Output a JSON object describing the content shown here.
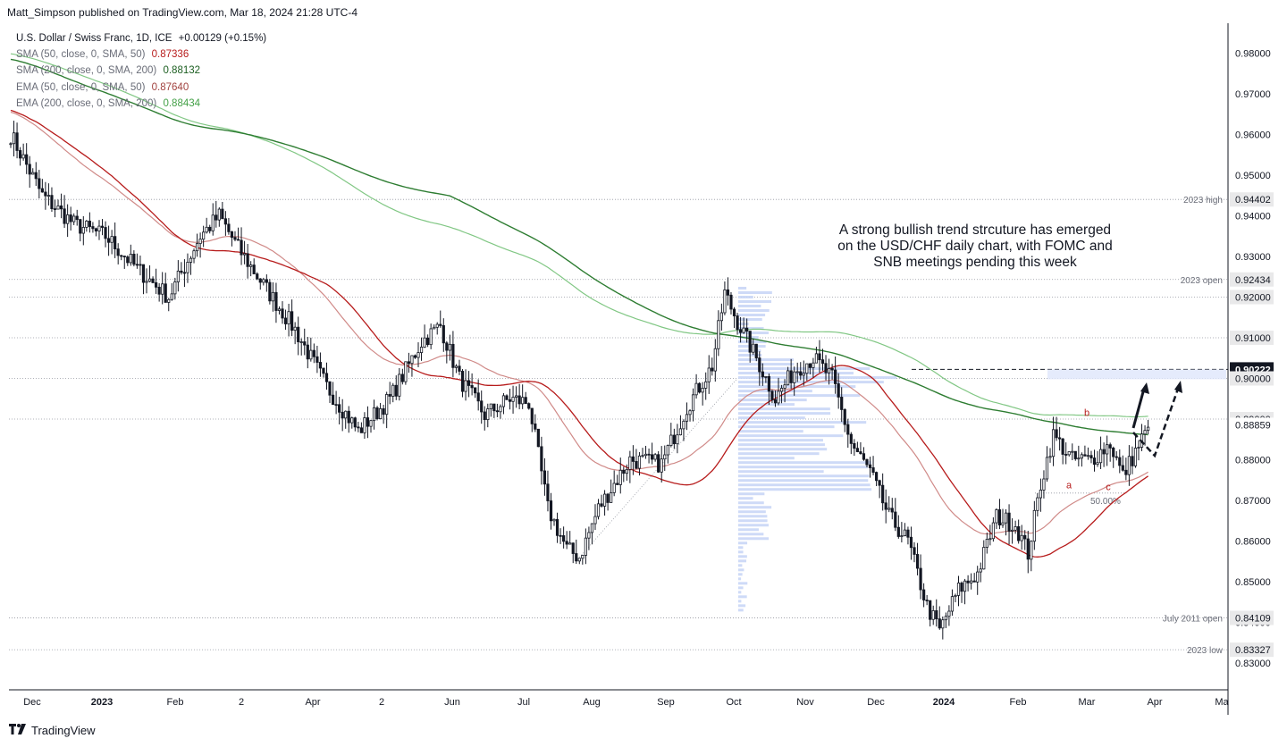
{
  "header": {
    "published_line": "Matt_Simpson published on TradingView.com, Mar 18, 2024 21:28 UTC-4"
  },
  "legend": {
    "symbol": "U.S. Dollar / Swiss Franc, 1D, ICE",
    "change": "+0.00129 (+0.15%)",
    "indicators": [
      {
        "label": "SMA (50, close, 0, SMA, 50)",
        "value": "0.87336",
        "color": "#b71c1c"
      },
      {
        "label": "SMA (200, close, 0, SMA, 200)",
        "value": "0.88132",
        "color": "#1b5e20"
      },
      {
        "label": "EMA (50, close, 0, SMA, 50)",
        "value": "0.87640",
        "color": "#a1423f"
      },
      {
        "label": "EMA (200, close, 0, SMA, 200)",
        "value": "0.88434",
        "color": "#43a047"
      }
    ]
  },
  "annotation": {
    "text_lines": [
      "A strong bullish trend strcuture has emerged",
      "on the USD/CHF daily chart, with FOMC and",
      "SNB meetings pending this week"
    ]
  },
  "footer": {
    "brand": "TradingView"
  },
  "chart_data": {
    "type": "candlestick",
    "title": "U.S. Dollar / Swiss Franc, 1D, ICE",
    "ylim": [
      0.8259,
      0.9905
    ],
    "y_ticks": [
      "0.98000",
      "0.97000",
      "0.96000",
      "0.95000",
      "0.94000",
      "0.93000",
      "0.92000",
      "0.91000",
      "0.90000",
      "0.89000",
      "0.88000",
      "0.87000",
      "0.86000",
      "0.85000",
      "0.84000",
      "0.83000"
    ],
    "x_ticks": [
      "Dec",
      "2023",
      "Feb",
      "2",
      "Apr",
      "2",
      "Jun",
      "Jul",
      "Aug",
      "Sep",
      "Oct",
      "Nov",
      "Dec",
      "2024",
      "Feb",
      "Mar",
      "Apr",
      "Ma"
    ],
    "price_levels": [
      {
        "label": "2023 high",
        "value": 0.94402,
        "tag": "0.94402"
      },
      {
        "label": "2023 open",
        "value": 0.92434,
        "tag": "0.92434"
      },
      {
        "label": "",
        "value": 0.92,
        "tag": "0.92000"
      },
      {
        "label": "",
        "value": 0.91,
        "tag": "0.91000"
      },
      {
        "label": "",
        "value": 0.90222,
        "tag": "0.90222"
      },
      {
        "label": "",
        "value": 0.9,
        "tag": "0.90000"
      },
      {
        "label": "",
        "value": 0.89,
        "tag": "0.89000"
      },
      {
        "label": "",
        "value": 0.88859,
        "tag": "0.88859"
      },
      {
        "label": "July 2011 open",
        "value": 0.84109,
        "tag": "0.84109"
      },
      {
        "label": "2023 low",
        "value": 0.83327,
        "tag": "0.83327"
      }
    ],
    "current_price": 0.88859,
    "wave_labels": [
      "a",
      "b",
      "c"
    ],
    "fib_label": "50.00%",
    "price_path_anchor_closes": [
      [
        0,
        0.96
      ],
      [
        10,
        0.945
      ],
      [
        20,
        0.938
      ],
      [
        30,
        0.935
      ],
      [
        40,
        0.927
      ],
      [
        50,
        0.92
      ],
      [
        60,
        0.935
      ],
      [
        66,
        0.94
      ],
      [
        72,
        0.932
      ],
      [
        80,
        0.923
      ],
      [
        90,
        0.912
      ],
      [
        100,
        0.898
      ],
      [
        110,
        0.887
      ],
      [
        120,
        0.895
      ],
      [
        130,
        0.909
      ],
      [
        136,
        0.913
      ],
      [
        142,
        0.9
      ],
      [
        150,
        0.891
      ],
      [
        158,
        0.895
      ],
      [
        164,
        0.894
      ],
      [
        170,
        0.868
      ],
      [
        176,
        0.858
      ],
      [
        180,
        0.856
      ],
      [
        186,
        0.868
      ],
      [
        196,
        0.88
      ],
      [
        206,
        0.879
      ],
      [
        214,
        0.893
      ],
      [
        222,
        0.903
      ],
      [
        226,
        0.921
      ],
      [
        230,
        0.914
      ],
      [
        236,
        0.905
      ],
      [
        242,
        0.895
      ],
      [
        248,
        0.902
      ],
      [
        254,
        0.905
      ],
      [
        260,
        0.9
      ],
      [
        266,
        0.884
      ],
      [
        272,
        0.877
      ],
      [
        278,
        0.866
      ],
      [
        284,
        0.86
      ],
      [
        290,
        0.844
      ],
      [
        294,
        0.838
      ],
      [
        300,
        0.848
      ],
      [
        306,
        0.852
      ],
      [
        312,
        0.866
      ],
      [
        318,
        0.864
      ],
      [
        322,
        0.857
      ],
      [
        326,
        0.874
      ],
      [
        330,
        0.886
      ],
      [
        336,
        0.88
      ],
      [
        342,
        0.88
      ],
      [
        348,
        0.884
      ],
      [
        352,
        0.876
      ],
      [
        356,
        0.882
      ],
      [
        360,
        0.888
      ]
    ],
    "series": [
      {
        "name": "SMA (50, close, 0, SMA, 50)",
        "color": "#b71c1c",
        "last": 0.87336
      },
      {
        "name": "SMA (200, close, 0, SMA, 200)",
        "color": "#1b5e20",
        "last": 0.88132
      },
      {
        "name": "EMA (50, close, 0, SMA, 50)",
        "color": "#a1423f",
        "last": 0.8764
      },
      {
        "name": "EMA (200, close, 0, SMA, 200)",
        "color": "#43a047",
        "last": 0.88434
      }
    ]
  }
}
